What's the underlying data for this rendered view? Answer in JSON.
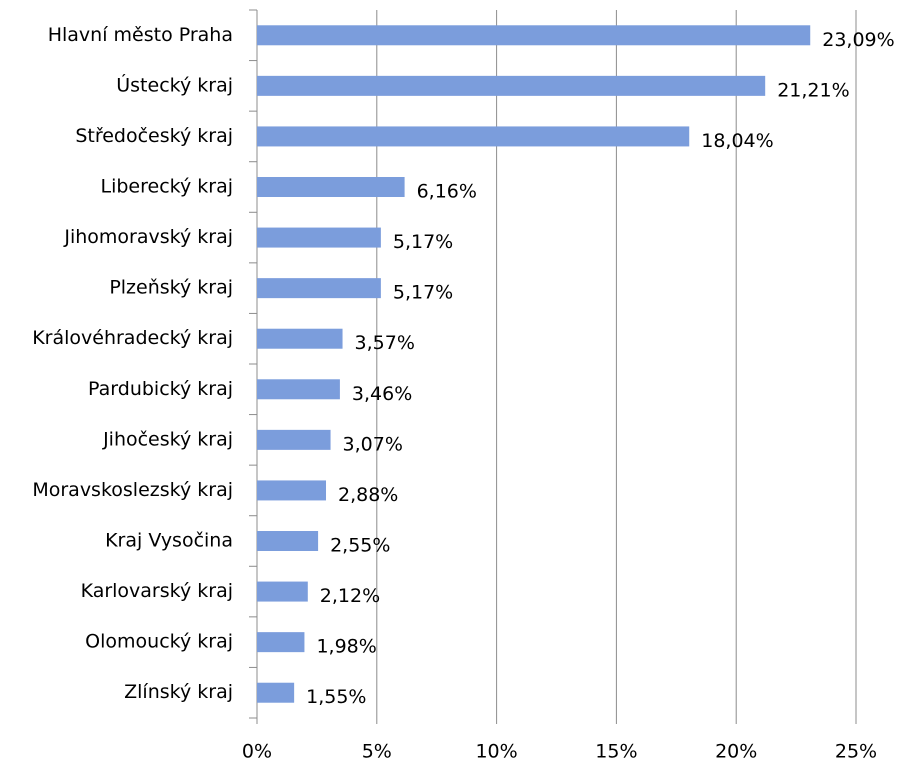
{
  "chart_data": {
    "type": "bar",
    "orientation": "horizontal",
    "categories": [
      "Hlavní město Praha",
      "Ústecký kraj",
      "Středočeský kraj",
      "Liberecký kraj",
      "Jihomoravský kraj",
      "Plzeňský kraj",
      "Královéhradecký kraj",
      "Pardubický kraj",
      "Jihočeský kraj",
      "Moravskoslezský kraj",
      "Kraj Vysočina",
      "Karlovarský kraj",
      "Olomoucký kraj",
      "Zlínský kraj"
    ],
    "values": [
      23.09,
      21.21,
      18.04,
      6.16,
      5.17,
      5.17,
      3.57,
      3.46,
      3.07,
      2.88,
      2.55,
      2.12,
      1.98,
      1.55
    ],
    "value_labels": [
      "23,09%",
      "21,21%",
      "18,04%",
      "6,16%",
      "5,17%",
      "5,17%",
      "3,57%",
      "3,46%",
      "3,07%",
      "2,88%",
      "2,55%",
      "2,12%",
      "1,98%",
      "1,55%"
    ],
    "color": "#7b9ddc",
    "xlim": [
      0,
      25
    ],
    "xticks": [
      {
        "value": 0,
        "label": "0%"
      },
      {
        "value": 5,
        "label": "5%"
      },
      {
        "value": 10,
        "label": "10%"
      },
      {
        "value": 15,
        "label": "15%"
      },
      {
        "value": 20,
        "label": "20%"
      },
      {
        "value": 25,
        "label": "25%"
      }
    ],
    "grid": true
  }
}
